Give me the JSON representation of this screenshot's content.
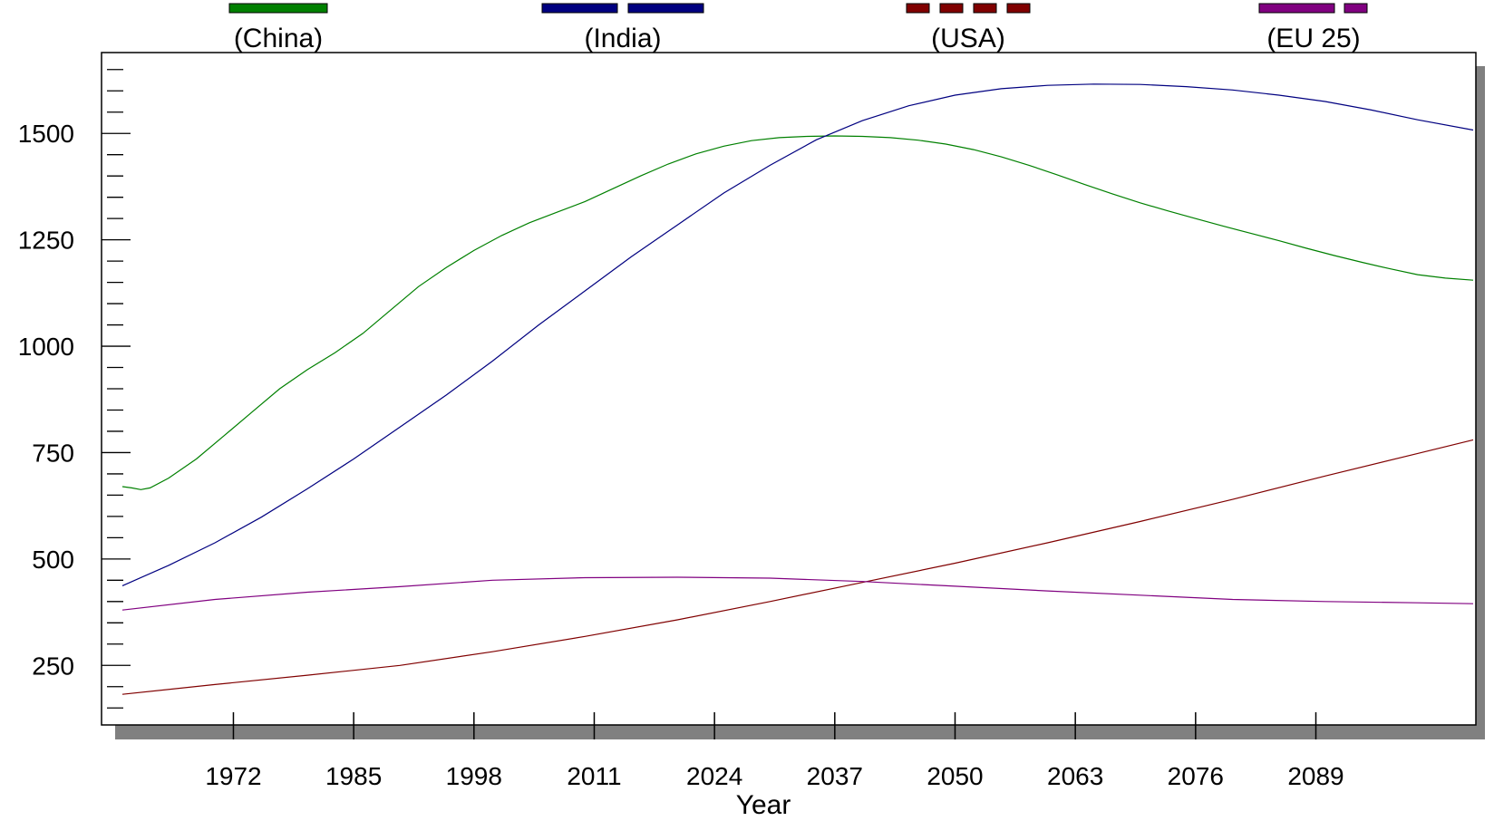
{
  "chart_data": {
    "type": "line",
    "xlabel": "Year",
    "ylabel": "",
    "xlim": [
      1960,
      2106
    ],
    "ylim": [
      110,
      1690
    ],
    "x_ticks": [
      1972,
      1985,
      1998,
      2011,
      2024,
      2037,
      2050,
      2063,
      2076,
      2089
    ],
    "y_ticks": [
      250,
      500,
      750,
      1000,
      1250,
      1500
    ],
    "grid": false,
    "legend_position": "top",
    "series": [
      {
        "name": "(China)",
        "color": "#008000",
        "dash": "solid",
        "x": [
          1960,
          1961,
          1962,
          1963,
          1965,
          1968,
          1971,
          1974,
          1977,
          1980,
          1983,
          1986,
          1989,
          1992,
          1995,
          1998,
          2001,
          2004,
          2007,
          2010,
          2013,
          2016,
          2019,
          2022,
          2025,
          2028,
          2031,
          2034,
          2037,
          2040,
          2043,
          2046,
          2049,
          2052,
          2055,
          2058,
          2061,
          2064,
          2067,
          2070,
          2073,
          2076,
          2079,
          2082,
          2085,
          2088,
          2091,
          2094,
          2097,
          2100,
          2103,
          2106
        ],
        "y": [
          670,
          667,
          663,
          667,
          690,
          735,
          790,
          845,
          900,
          945,
          985,
          1030,
          1085,
          1140,
          1185,
          1225,
          1260,
          1290,
          1315,
          1340,
          1370,
          1400,
          1428,
          1452,
          1470,
          1483,
          1490,
          1493,
          1494,
          1493,
          1490,
          1484,
          1475,
          1462,
          1445,
          1425,
          1403,
          1380,
          1358,
          1337,
          1318,
          1300,
          1282,
          1265,
          1248,
          1230,
          1213,
          1197,
          1182,
          1168,
          1160,
          1155
        ]
      },
      {
        "name": "(India)",
        "color": "#000080",
        "dash": "long-dash",
        "x": [
          1960,
          1965,
          1970,
          1975,
          1980,
          1985,
          1990,
          1995,
          2000,
          2005,
          2010,
          2015,
          2020,
          2025,
          2030,
          2035,
          2040,
          2045,
          2050,
          2055,
          2060,
          2065,
          2070,
          2075,
          2080,
          2085,
          2090,
          2095,
          2100,
          2106
        ],
        "y": [
          437,
          485,
          538,
          598,
          665,
          735,
          810,
          885,
          965,
          1050,
          1130,
          1210,
          1285,
          1360,
          1425,
          1485,
          1530,
          1565,
          1590,
          1605,
          1613,
          1616,
          1615,
          1610,
          1602,
          1590,
          1575,
          1555,
          1532,
          1508
        ]
      },
      {
        "name": "(USA)",
        "color": "#800000",
        "dash": "short-dash",
        "x": [
          1960,
          1970,
          1980,
          1990,
          2000,
          2010,
          2020,
          2030,
          2040,
          2050,
          2060,
          2070,
          2080,
          2090,
          2100,
          2106
        ],
        "y": [
          182,
          205,
          227,
          250,
          282,
          318,
          357,
          400,
          445,
          490,
          538,
          588,
          640,
          695,
          748,
          780
        ]
      },
      {
        "name": "(EU 25)",
        "color": "#800080",
        "dash": "dash-dot",
        "x": [
          1960,
          1970,
          1980,
          1990,
          2000,
          2010,
          2020,
          2030,
          2040,
          2050,
          2060,
          2070,
          2080,
          2090,
          2100,
          2106
        ],
        "y": [
          380,
          405,
          422,
          435,
          450,
          456,
          457,
          455,
          447,
          436,
          425,
          415,
          405,
          400,
          397,
          395
        ]
      }
    ]
  }
}
